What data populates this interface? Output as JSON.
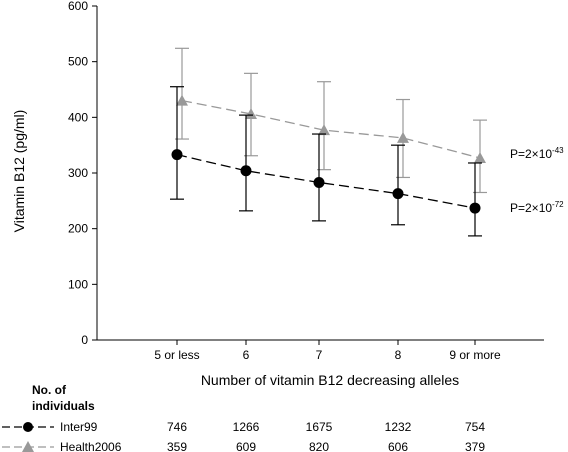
{
  "chart_data": {
    "type": "line",
    "categories": [
      "5 or less",
      "6",
      "7",
      "8",
      "9 or more"
    ],
    "xlabel": "Number of vitamin B12 decreasing alleles",
    "ylabel": "Vitamin B12 (pg/ml)",
    "ylim": [
      0,
      600
    ],
    "yticks": [
      0,
      100,
      200,
      300,
      400,
      500,
      600
    ],
    "grid": false,
    "series": [
      {
        "name": "Inter99",
        "marker": "circle",
        "color": "#000000",
        "dash": "dashed",
        "values": [
          333,
          304,
          283,
          263,
          237
        ],
        "err_low": [
          253,
          232,
          214,
          207,
          187
        ],
        "err_high": [
          455,
          404,
          370,
          350,
          318
        ],
        "p_value": {
          "base": "P=2×10",
          "exp": "-72"
        },
        "counts": [
          "746",
          "1266",
          "1675",
          "1232",
          "754"
        ]
      },
      {
        "name": "Health2006",
        "marker": "triangle",
        "color": "#999999",
        "dash": "dashed",
        "values": [
          430,
          406,
          377,
          363,
          327
        ],
        "err_low": [
          361,
          331,
          306,
          292,
          265
        ],
        "err_high": [
          524,
          479,
          464,
          432,
          395
        ],
        "p_value": {
          "base": "P=2×10",
          "exp": "-43"
        },
        "counts": [
          "359",
          "609",
          "820",
          "606",
          "379"
        ]
      }
    ],
    "table_header": [
      "No. of",
      "individuals"
    ]
  }
}
